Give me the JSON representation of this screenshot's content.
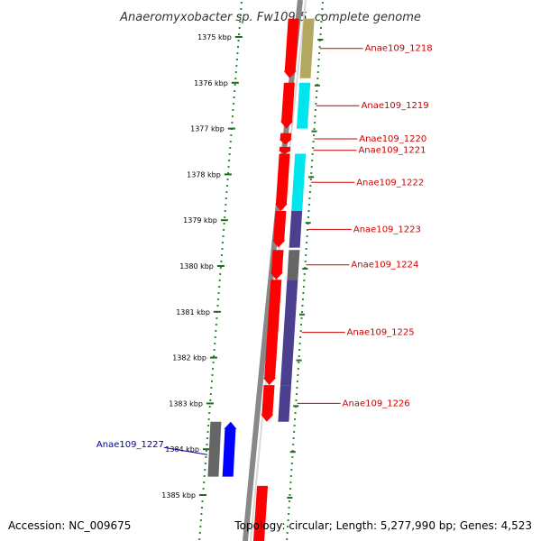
{
  "title": "Anaeromyxobacter sp. Fw109-5, complete genome",
  "accession_text": "Accession: NC_009675",
  "topology_text": "Topology: circular; Length: 5,277,990 bp; Genes: 4,523",
  "colors": {
    "scale_dots": "#2e8b2e",
    "tick": "#1f6b1f",
    "backbone": "#888888",
    "forward_gene": "#ff0000",
    "reverse_gene": "#0000ff",
    "label_red": "#cc0000",
    "label_blue": "#0000aa"
  },
  "scale": {
    "unit": "kbp",
    "ticks": [
      "1375 kbp",
      "1376 kbp",
      "1377 kbp",
      "1378 kbp",
      "1379 kbp",
      "1380 kbp",
      "1381 kbp",
      "1382 kbp",
      "1383 kbp",
      "1384 kbp",
      "1385 kbp"
    ]
  },
  "genes": [
    {
      "label": "Anae109_1218",
      "strand": "+",
      "cog_color": "#b3a860",
      "start_kbp": 1374.6,
      "end_kbp": 1375.9
    },
    {
      "label": "Anae109_1219",
      "strand": "+",
      "cog_color": "#00e5ee",
      "start_kbp": 1376.0,
      "end_kbp": 1377.0
    },
    {
      "label": "Anae109_1220",
      "strand": "+",
      "cog_color": "#ffffff",
      "start_kbp": 1377.1,
      "end_kbp": 1377.35
    },
    {
      "label": "Anae109_1221",
      "strand": "+",
      "cog_color": "#ffffff",
      "start_kbp": 1377.4,
      "end_kbp": 1377.55
    },
    {
      "label": "Anae109_1222",
      "strand": "+",
      "cog_color": "#00e5ee",
      "start_kbp": 1377.55,
      "end_kbp": 1378.8
    },
    {
      "label": "Anae109_1223",
      "strand": "+",
      "cog_color": "#4b3f8f",
      "start_kbp": 1378.8,
      "end_kbp": 1379.6
    },
    {
      "label": "Anae109_1224",
      "strand": "+",
      "cog_color": "#666666",
      "start_kbp": 1379.65,
      "end_kbp": 1380.3
    },
    {
      "label": "Anae109_1225",
      "strand": "+",
      "cog_color": "#4b3f8f",
      "start_kbp": 1380.3,
      "end_kbp": 1382.6
    },
    {
      "label": "Anae109_1226",
      "strand": "+",
      "cog_color": "#4b3f8f",
      "start_kbp": 1382.6,
      "end_kbp": 1383.4
    },
    {
      "label": "Anae109_1227",
      "strand": "-",
      "cog_color": "#666666",
      "start_kbp": 1383.4,
      "end_kbp": 1384.6
    },
    {
      "label": "",
      "strand": "+",
      "cog_color": "#ffffff",
      "start_kbp": 1384.8,
      "end_kbp": 1386.2
    }
  ]
}
